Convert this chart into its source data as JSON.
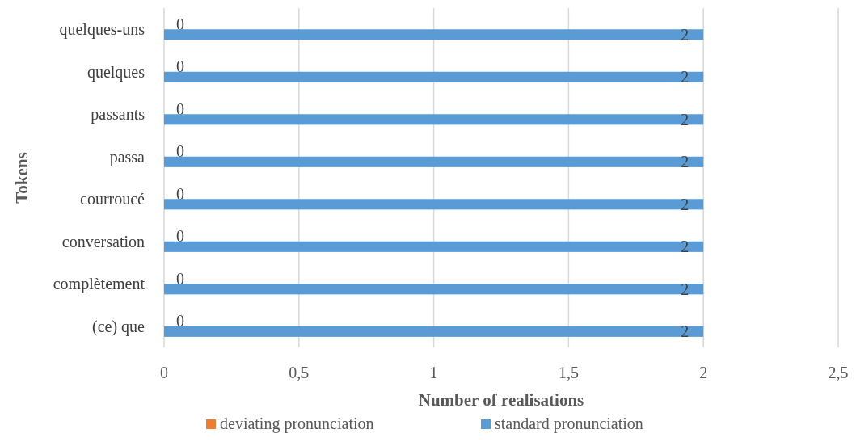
{
  "chart_data": {
    "type": "bar",
    "orientation": "horizontal",
    "xlabel": "Number of realisations",
    "ylabel": "Tokens",
    "categories": [
      "quelques-uns",
      "quelques",
      "passants",
      "passa",
      "courroucé",
      "conversation",
      "complètement",
      "(ce) que"
    ],
    "series": [
      {
        "name": "deviating pronunciation",
        "color": "#ed7d31",
        "values": [
          0,
          0,
          0,
          0,
          0,
          0,
          0,
          0
        ]
      },
      {
        "name": "standard pronunciation",
        "color": "#5b9bd5",
        "values": [
          2,
          2,
          2,
          2,
          2,
          2,
          2,
          2
        ]
      }
    ],
    "xlim": [
      0,
      2.5
    ],
    "xticks": [
      0,
      {
        "value": 0.5,
        "label": "0,5"
      },
      1,
      {
        "value": 1.5,
        "label": "1,5"
      },
      2,
      {
        "value": 2.5,
        "label": "2,5"
      }
    ],
    "grid": "x",
    "legend": "bottom",
    "data_labels": true
  }
}
